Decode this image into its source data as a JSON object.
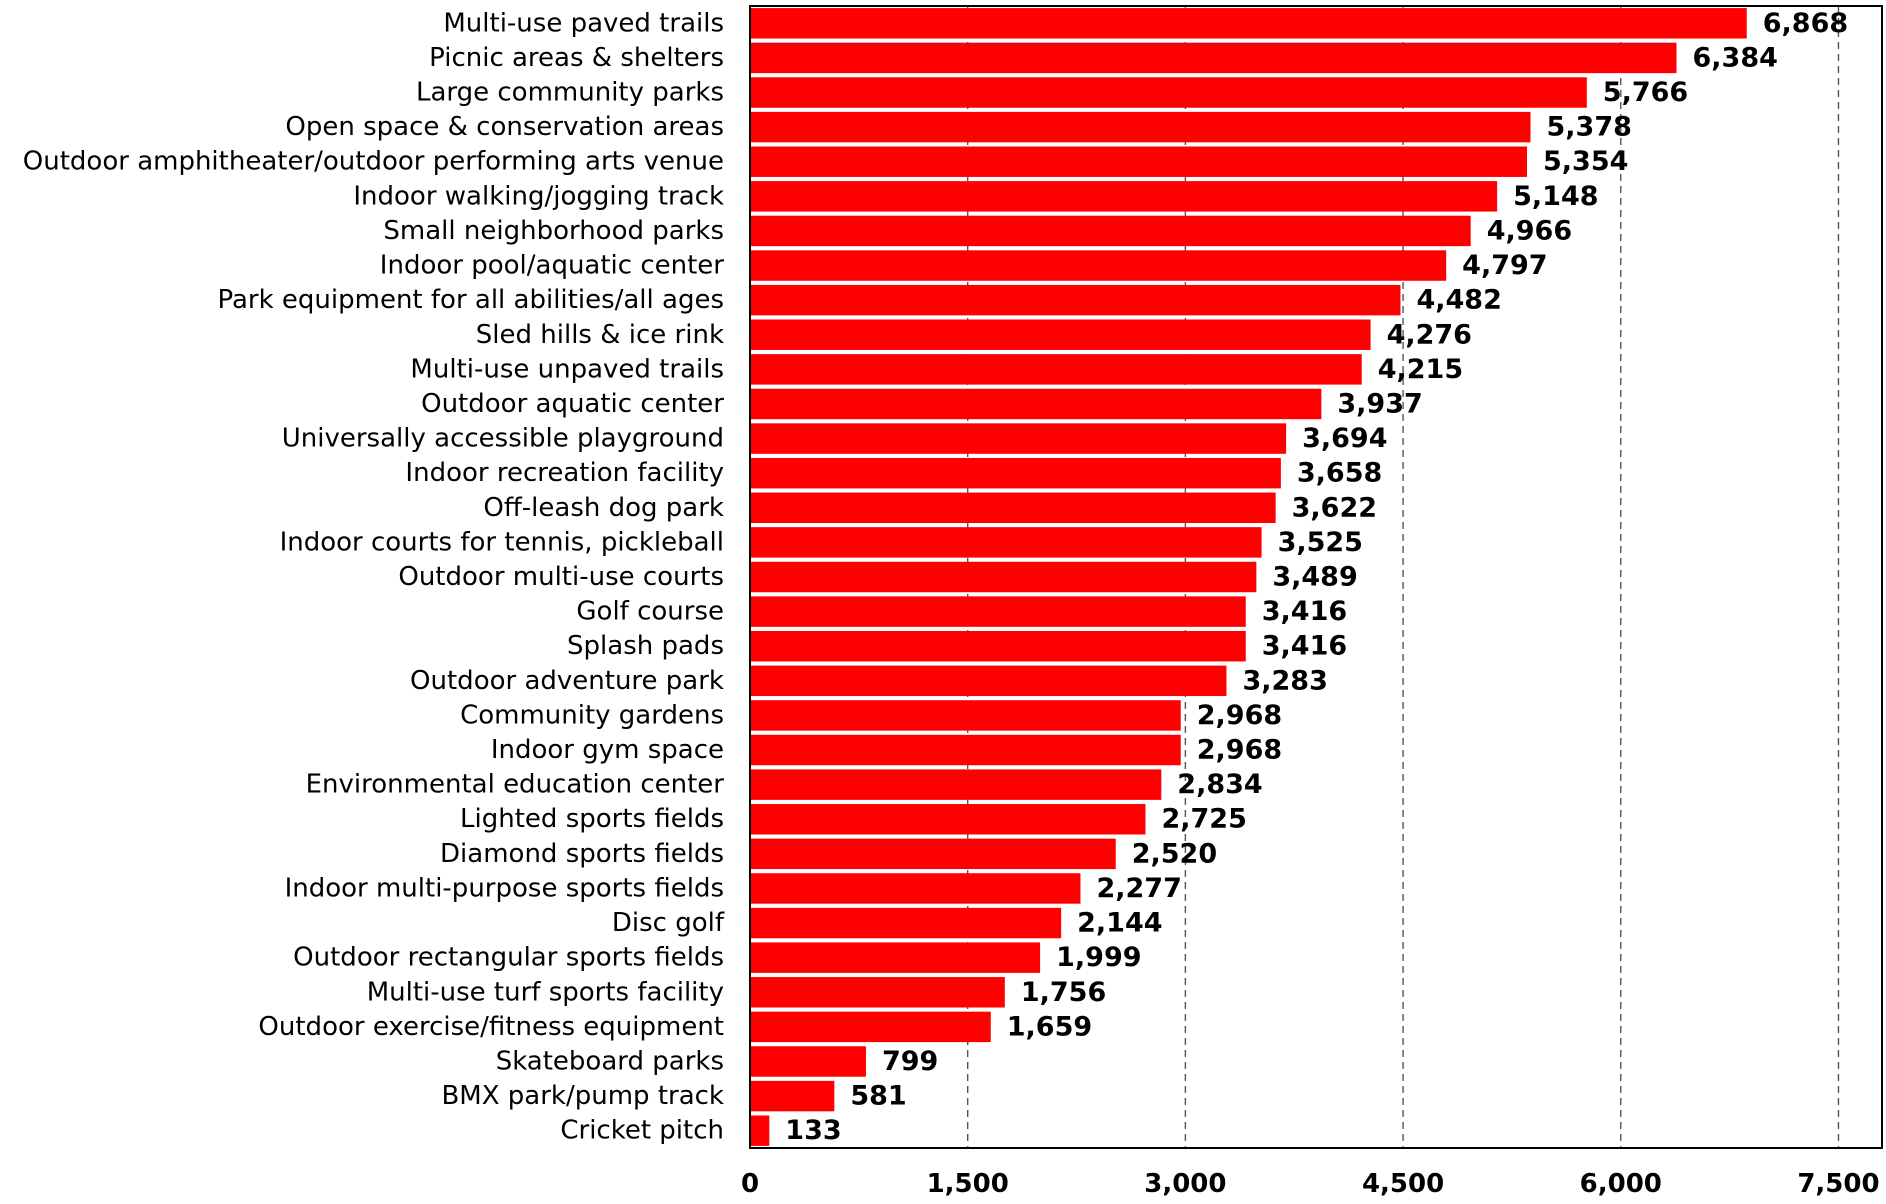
{
  "chart_data": {
    "type": "bar",
    "orientation": "horizontal",
    "categories": [
      "Multi-use paved trails",
      "Picnic areas & shelters",
      "Large community parks",
      "Open space & conservation areas",
      "Outdoor amphitheater/outdoor performing arts venue",
      "Indoor walking/jogging track",
      "Small neighborhood parks",
      "Indoor pool/aquatic center",
      "Park equipment for all abilities/all ages",
      "Sled hills & ice rink",
      "Multi-use unpaved trails",
      "Outdoor aquatic center",
      "Universally accessible playground",
      "Indoor recreation facility",
      "Off-leash dog park",
      "Indoor courts for tennis, pickleball",
      "Outdoor multi-use courts",
      "Golf course",
      "Splash pads",
      "Outdoor adventure park",
      "Community gardens",
      "Indoor gym space",
      "Environmental education center",
      "Lighted sports fields",
      "Diamond sports fields",
      "Indoor multi-purpose sports fields",
      "Disc golf",
      "Outdoor rectangular sports fields",
      "Multi-use turf sports facility",
      "Outdoor exercise/fitness equipment",
      "Skateboard parks",
      "BMX park/pump track",
      "Cricket pitch"
    ],
    "values": [
      6868,
      6384,
      5766,
      5378,
      5354,
      5148,
      4966,
      4797,
      4482,
      4276,
      4215,
      3937,
      3694,
      3658,
      3622,
      3525,
      3489,
      3416,
      3416,
      3283,
      2968,
      2968,
      2834,
      2725,
      2520,
      2277,
      2144,
      1999,
      1756,
      1659,
      799,
      581,
      133
    ],
    "value_labels": [
      "6,868",
      "6,384",
      "5,766",
      "5,378",
      "5,354",
      "5,148",
      "4,966",
      "4,797",
      "4,482",
      "4,276",
      "4,215",
      "3,937",
      "3,694",
      "3,658",
      "3,622",
      "3,525",
      "3,489",
      "3,416",
      "3,416",
      "3,283",
      "2,968",
      "2,968",
      "2,834",
      "2,725",
      "2,520",
      "2,277",
      "2,144",
      "1,999",
      "1,756",
      "1,659",
      "799",
      "581",
      "133"
    ],
    "xlim": [
      0,
      7800
    ],
    "xticks": [
      0,
      1500,
      3000,
      4500,
      6000,
      7500
    ],
    "xtick_labels": [
      "0",
      "1,500",
      "3,000",
      "4,500",
      "6,000",
      "7,500"
    ],
    "grid": "vertical dashed",
    "title": "",
    "xlabel": "",
    "ylabel": "",
    "bar_color": "#ff0000",
    "text_color": "#000000",
    "grid_color": "#555555"
  }
}
